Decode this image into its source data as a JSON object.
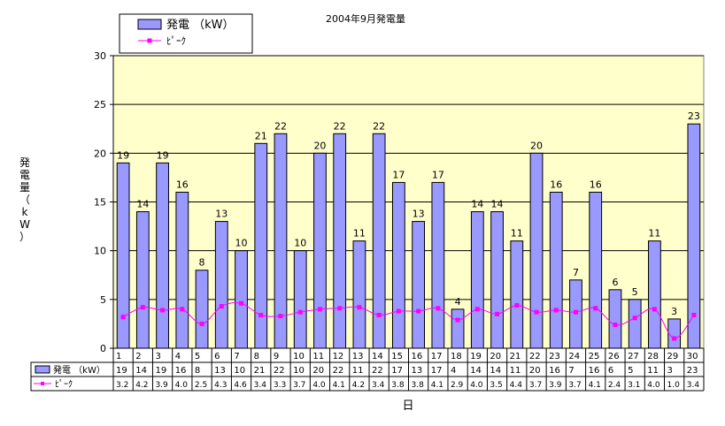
{
  "chart_data": {
    "type": "bar",
    "title": "2004年9月発電量",
    "xlabel": "日",
    "ylabel": "発電量（kW）",
    "ylim": [
      0,
      30
    ],
    "yticks": [
      "0",
      "5",
      "10",
      "15",
      "20",
      "25",
      "30"
    ],
    "grid": true,
    "legend_position": "top-left",
    "categories": [
      "1",
      "2",
      "3",
      "4",
      "5",
      "6",
      "7",
      "8",
      "9",
      "10",
      "11",
      "12",
      "13",
      "14",
      "15",
      "16",
      "17",
      "18",
      "19",
      "20",
      "21",
      "22",
      "23",
      "24",
      "25",
      "26",
      "27",
      "28",
      "29",
      "30"
    ],
    "series": [
      {
        "name": "発電 （kW）",
        "type": "bar",
        "color": "#9999ff",
        "values": [
          19,
          14,
          19,
          16,
          8,
          13,
          10,
          21,
          22,
          10,
          20,
          22,
          11,
          22,
          17,
          13,
          17,
          4,
          14,
          14,
          11,
          20,
          16,
          7,
          16,
          6,
          5,
          11,
          3,
          23
        ],
        "labels": [
          "19",
          "14",
          "19",
          "16",
          "8",
          "13",
          "10",
          "21",
          "22",
          "10",
          "20",
          "22",
          "11",
          "22",
          "17",
          "13",
          "17",
          "4",
          "14",
          "14",
          "11",
          "20",
          "16",
          "7",
          "16",
          "6",
          "5",
          "11",
          "3",
          "23"
        ]
      },
      {
        "name": "ﾋﾟｰｸ",
        "type": "line",
        "color": "#ff00ff",
        "values": [
          3.2,
          4.2,
          3.9,
          4.0,
          2.5,
          4.3,
          4.6,
          3.4,
          3.3,
          3.7,
          4.0,
          4.1,
          4.2,
          3.4,
          3.8,
          3.8,
          4.1,
          2.9,
          4.0,
          3.5,
          4.4,
          3.7,
          3.9,
          3.7,
          4.1,
          2.4,
          3.1,
          4.0,
          1.0,
          3.4
        ],
        "labels": [
          "3.2",
          "4.2",
          "3.9",
          "4.0",
          "2.5",
          "4.3",
          "4.6",
          "3.4",
          "3.3",
          "3.7",
          "4.0",
          "4.1",
          "4.2",
          "3.4",
          "3.8",
          "3.8",
          "4.1",
          "2.9",
          "4.0",
          "3.5",
          "4.4",
          "3.7",
          "3.9",
          "3.7",
          "4.1",
          "2.4",
          "3.1",
          "4.0",
          "1.0",
          "3.4"
        ]
      }
    ]
  },
  "colors": {
    "plot_background": "#ffffcc",
    "bar": "#9999ff",
    "line": "#ff00ff"
  }
}
